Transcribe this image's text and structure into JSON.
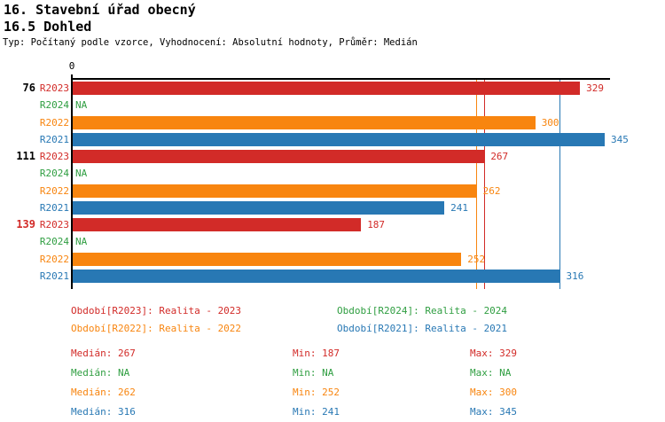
{
  "chart_data": {
    "type": "bar",
    "orientation": "horizontal",
    "title": "16. Stavební úřad obecný",
    "subtitle": "16.5 Dohled",
    "meta": "Typ: Počítaný podle vzorce, Vyhodnocení: Absolutní hodnoty, Průměr: Medián",
    "xlim": [
      0,
      348
    ],
    "axis_tick_label": "0",
    "series_colors": {
      "R2023": "#d22b28",
      "R2024": "#2f9e41",
      "R2022": "#f8850f",
      "R2021": "#2878b4"
    },
    "axis_color": "#000000",
    "na_text": "NA",
    "groups": [
      {
        "label": "76",
        "label_color": "#000000",
        "bars": [
          {
            "series": "R2023",
            "value": 329,
            "display": "329"
          },
          {
            "series": "R2024",
            "value": null,
            "display": "NA"
          },
          {
            "series": "R2022",
            "value": 300,
            "display": "300"
          },
          {
            "series": "R2021",
            "value": 345,
            "display": "345"
          }
        ]
      },
      {
        "label": "111",
        "label_color": "#000000",
        "bars": [
          {
            "series": "R2023",
            "value": 267,
            "display": "267"
          },
          {
            "series": "R2024",
            "value": null,
            "display": "NA"
          },
          {
            "series": "R2022",
            "value": 262,
            "display": "262"
          },
          {
            "series": "R2021",
            "value": 241,
            "display": "241"
          }
        ]
      },
      {
        "label": "139",
        "label_color": "#d22b28",
        "bars": [
          {
            "series": "R2023",
            "value": 187,
            "display": "187"
          },
          {
            "series": "R2024",
            "value": null,
            "display": "NA"
          },
          {
            "series": "R2022",
            "value": 252,
            "display": "252"
          },
          {
            "series": "R2021",
            "value": 316,
            "display": "316"
          }
        ]
      }
    ],
    "median_lines": [
      {
        "series": "R2022",
        "value": 262
      },
      {
        "series": "R2023",
        "value": 267
      },
      {
        "series": "R2021",
        "value": 316
      }
    ],
    "legend": [
      {
        "series": "R2023",
        "label": "Období[R2023]: Realita - 2023"
      },
      {
        "series": "R2024",
        "label": "Období[R2024]: Realita - 2024"
      },
      {
        "series": "R2022",
        "label": "Období[R2022]: Realita - 2022"
      },
      {
        "series": "R2021",
        "label": "Období[R2021]: Realita - 2021"
      }
    ],
    "stats_labels": {
      "median": "Medián:",
      "min": "Min:",
      "max": "Max:"
    },
    "stats": [
      {
        "series": "R2023",
        "median": "267",
        "min": "187",
        "max": "329"
      },
      {
        "series": "R2024",
        "median": "NA",
        "min": "NA",
        "max": "NA"
      },
      {
        "series": "R2022",
        "median": "262",
        "min": "252",
        "max": "300"
      },
      {
        "series": "R2021",
        "median": "316",
        "min": "241",
        "max": "345"
      }
    ]
  }
}
